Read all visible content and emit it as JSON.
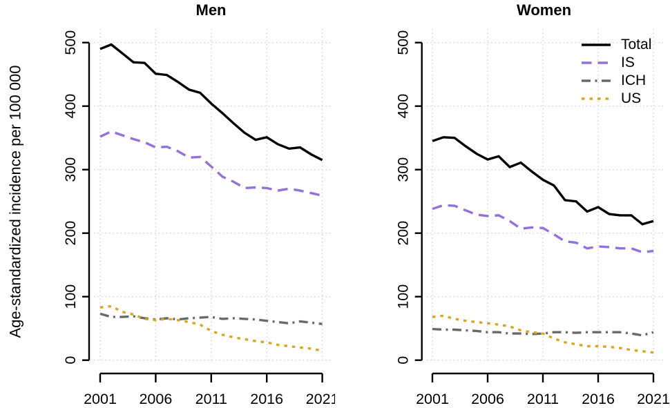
{
  "y_axis_label": "Age-standardized incidence per 100 000",
  "legend": {
    "position": "top-right-of-women-panel",
    "entries": [
      "Total",
      "IS",
      "ICH",
      "US"
    ]
  },
  "chart_data": [
    {
      "type": "line",
      "title": "Men",
      "ylabel": "Age-standardized incidence per 100 000",
      "xlabel": "",
      "x": [
        2001,
        2002,
        2003,
        2004,
        2005,
        2006,
        2007,
        2008,
        2009,
        2010,
        2011,
        2012,
        2013,
        2014,
        2015,
        2016,
        2017,
        2018,
        2019,
        2020,
        2021
      ],
      "x_ticks": [
        2001,
        2006,
        2011,
        2016,
        2021
      ],
      "y_ticks": [
        0,
        100,
        200,
        300,
        400,
        500
      ],
      "ylim": [
        0,
        500
      ],
      "grid": true,
      "series": [
        {
          "name": "Total",
          "color": "#000000",
          "dash": "solid",
          "values": [
            490,
            497,
            483,
            469,
            468,
            451,
            449,
            438,
            426,
            421,
            404,
            389,
            373,
            358,
            347,
            351,
            340,
            333,
            335,
            324,
            315
          ]
        },
        {
          "name": "IS",
          "color": "#9370DB",
          "dash": "dashed",
          "values": [
            352,
            360,
            354,
            348,
            343,
            335,
            336,
            329,
            319,
            320,
            305,
            289,
            281,
            271,
            272,
            271,
            267,
            270,
            267,
            263,
            259
          ]
        },
        {
          "name": "ICH",
          "color": "#696969",
          "dash": "dashdot",
          "values": [
            73,
            68,
            68,
            69,
            66,
            64,
            66,
            64,
            66,
            67,
            68,
            65,
            66,
            65,
            64,
            62,
            60,
            58,
            61,
            59,
            57
          ]
        },
        {
          "name": "US",
          "color": "#DAA520",
          "dash": "dotted",
          "values": [
            83,
            85,
            76,
            72,
            65,
            63,
            65,
            63,
            60,
            56,
            46,
            40,
            36,
            33,
            30,
            28,
            24,
            22,
            20,
            18,
            15
          ]
        }
      ]
    },
    {
      "type": "line",
      "title": "Women",
      "ylabel": "Age-standardized incidence per 100 000",
      "xlabel": "",
      "x": [
        2001,
        2002,
        2003,
        2004,
        2005,
        2006,
        2007,
        2008,
        2009,
        2010,
        2011,
        2012,
        2013,
        2014,
        2015,
        2016,
        2017,
        2018,
        2019,
        2020,
        2021
      ],
      "x_ticks": [
        2001,
        2006,
        2011,
        2016,
        2021
      ],
      "y_ticks": [
        0,
        100,
        200,
        300,
        400,
        500
      ],
      "ylim": [
        0,
        500
      ],
      "grid": true,
      "legend_position": "top-right",
      "series": [
        {
          "name": "Total",
          "color": "#000000",
          "dash": "solid",
          "values": [
            345,
            351,
            350,
            337,
            325,
            316,
            321,
            304,
            311,
            297,
            284,
            275,
            252,
            250,
            234,
            241,
            230,
            228,
            228,
            214,
            219
          ]
        },
        {
          "name": "IS",
          "color": "#9370DB",
          "dash": "dashed",
          "values": [
            238,
            244,
            243,
            236,
            229,
            227,
            228,
            219,
            207,
            209,
            208,
            198,
            187,
            185,
            176,
            179,
            178,
            176,
            176,
            170,
            172
          ]
        },
        {
          "name": "ICH",
          "color": "#696969",
          "dash": "dashdot",
          "values": [
            49,
            48,
            48,
            47,
            46,
            44,
            44,
            42,
            42,
            41,
            42,
            44,
            44,
            43,
            44,
            44,
            44,
            44,
            42,
            39,
            44
          ]
        },
        {
          "name": "US",
          "color": "#DAA520",
          "dash": "dotted",
          "values": [
            68,
            70,
            65,
            62,
            60,
            58,
            56,
            53,
            47,
            44,
            42,
            34,
            28,
            25,
            22,
            22,
            21,
            19,
            16,
            14,
            12
          ]
        }
      ]
    }
  ]
}
